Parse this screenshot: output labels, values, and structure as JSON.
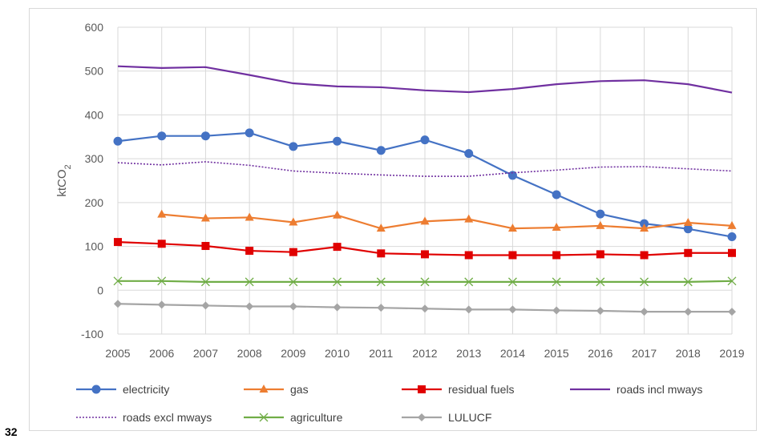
{
  "page_number": "32",
  "chart_data": {
    "type": "line",
    "title": "",
    "xlabel": "",
    "ylabel_main": "ktCO",
    "ylabel_sub": "2",
    "ylim": [
      -100,
      600
    ],
    "yticks": [
      -100,
      0,
      100,
      200,
      300,
      400,
      500,
      600
    ],
    "grid": true,
    "legend_position": "bottom",
    "categories": [
      "2005",
      "2006",
      "2007",
      "2008",
      "2009",
      "2010",
      "2011",
      "2012",
      "2013",
      "2014",
      "2015",
      "2016",
      "2017",
      "2018",
      "2019"
    ],
    "series": [
      {
        "name": "electricity",
        "color": "#4472c4",
        "marker": "circle",
        "dash": "solid",
        "values": [
          340,
          352,
          352,
          359,
          328,
          340,
          319,
          343,
          312,
          262,
          218,
          174,
          152,
          140,
          122
        ]
      },
      {
        "name": "gas",
        "color": "#ed7d31",
        "marker": "triangle",
        "dash": "solid",
        "values": [
          null,
          173,
          164,
          166,
          155,
          171,
          141,
          157,
          162,
          141,
          143,
          147,
          141,
          154,
          147
        ]
      },
      {
        "name": "residual fuels",
        "color": "#e00000",
        "marker": "square",
        "dash": "solid",
        "values": [
          110,
          106,
          101,
          90,
          87,
          99,
          84,
          82,
          80,
          80,
          80,
          82,
          80,
          85,
          85
        ]
      },
      {
        "name": "roads incl mways",
        "color": "#7030a0",
        "marker": "none",
        "dash": "solid",
        "values": [
          511,
          507,
          509,
          491,
          472,
          465,
          463,
          456,
          452,
          459,
          470,
          477,
          479,
          470,
          451
        ]
      },
      {
        "name": "roads excl mways",
        "color": "#7030a0",
        "marker": "none",
        "dash": "dotted",
        "values": [
          291,
          286,
          293,
          285,
          272,
          267,
          263,
          260,
          260,
          268,
          274,
          281,
          282,
          277,
          272
        ]
      },
      {
        "name": "agriculture",
        "color": "#70ad47",
        "marker": "x",
        "dash": "solid",
        "values": [
          21,
          21,
          19,
          19,
          19,
          19,
          19,
          19,
          19,
          19,
          19,
          19,
          19,
          19,
          21
        ]
      },
      {
        "name": "LULUCF",
        "color": "#a5a5a5",
        "marker": "diamond",
        "dash": "solid",
        "values": [
          -31,
          -33,
          -35,
          -37,
          -37,
          -39,
          -40,
          -42,
          -44,
          -44,
          -46,
          -47,
          -49,
          -49,
          -49
        ]
      }
    ]
  }
}
